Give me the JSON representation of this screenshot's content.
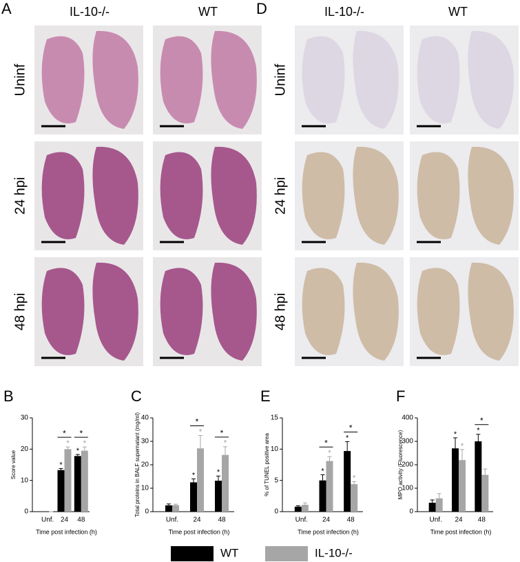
{
  "panels": [
    {
      "letter": "A",
      "columns": [
        "IL-10-/-",
        "WT"
      ],
      "rows": [
        "Uninf",
        "24 hpi",
        "48 hpi"
      ]
    },
    {
      "letter": "D",
      "columns": [
        "IL-10-/-",
        "WT"
      ],
      "rows": [
        "Uninf",
        "24 hpi",
        "48 hpi"
      ]
    }
  ],
  "chart_data": [
    {
      "type": "bar",
      "letter": "B",
      "y_label": "Score value",
      "x_label": "Time post infection (h)",
      "categories": [
        "Unf.",
        "24",
        "48"
      ],
      "ylim": [
        0,
        30
      ],
      "yticks": [
        0,
        10,
        20,
        30
      ],
      "series": [
        {
          "name": "WT",
          "color": "#000000",
          "values": [
            0,
            13.3,
            17.8
          ],
          "errors": [
            0,
            0.5,
            0.5
          ],
          "stars": [
            null,
            "*",
            "*"
          ]
        },
        {
          "name": "IL-10-/-",
          "color": "#a6a6a6",
          "values": [
            0,
            20,
            19.5
          ],
          "errors": [
            0,
            0.7,
            1.2
          ],
          "stars": [
            null,
            "*",
            "*"
          ]
        }
      ],
      "brackets": [
        null,
        "*",
        "*"
      ]
    },
    {
      "type": "bar",
      "letter": "C",
      "y_label": "Total proteins in BALF supernatant (mg/ml)",
      "x_label": "Time post infection (h)",
      "categories": [
        "Unf.",
        "24",
        "48"
      ],
      "ylim": [
        0,
        40
      ],
      "yticks": [
        0,
        10,
        20,
        30,
        40
      ],
      "series": [
        {
          "name": "WT",
          "color": "#000000",
          "values": [
            2.7,
            12.5,
            13.2
          ],
          "errors": [
            0.6,
            1.5,
            2
          ],
          "stars": [
            null,
            "*",
            "*"
          ]
        },
        {
          "name": "IL-10-/-",
          "color": "#a6a6a6",
          "values": [
            2.8,
            27,
            24.2
          ],
          "errors": [
            0.4,
            5.5,
            3.5
          ],
          "stars": [
            null,
            "*",
            "*"
          ]
        }
      ],
      "brackets": [
        null,
        "*",
        "*"
      ]
    },
    {
      "type": "bar",
      "letter": "E",
      "y_label": "% of TUNEL positive area",
      "x_label": "Time post infection (h)",
      "categories": [
        "Unf.",
        "24",
        "48"
      ],
      "ylim": [
        0,
        15
      ],
      "yticks": [
        0,
        5,
        10,
        15
      ],
      "series": [
        {
          "name": "WT",
          "color": "#000000",
          "values": [
            0.8,
            5.0,
            9.7
          ],
          "errors": [
            0.15,
            0.9,
            1.5
          ],
          "stars": [
            null,
            "*",
            "*"
          ]
        },
        {
          "name": "IL-10-/-",
          "color": "#a6a6a6",
          "values": [
            1.1,
            8.1,
            4.4
          ],
          "errors": [
            0.3,
            0.7,
            0.4
          ],
          "stars": [
            null,
            "*",
            "*"
          ]
        }
      ],
      "brackets": [
        null,
        "*",
        "*"
      ]
    },
    {
      "type": "bar",
      "letter": "F",
      "y_label": "MPO activity (Fluorescence)",
      "x_label": "Time post infection (h)",
      "categories": [
        "Unf.",
        "24",
        "48"
      ],
      "ylim": [
        0,
        400
      ],
      "yticks": [
        0,
        100,
        200,
        300,
        400
      ],
      "series": [
        {
          "name": "WT",
          "color": "#000000",
          "values": [
            38,
            270,
            300
          ],
          "errors": [
            12,
            45,
            30
          ],
          "stars": [
            null,
            "*",
            "*"
          ]
        },
        {
          "name": "IL-10-/-",
          "color": "#a6a6a6",
          "values": [
            57,
            220,
            157
          ],
          "errors": [
            20,
            45,
            25
          ],
          "stars": [
            null,
            "*",
            null
          ]
        }
      ],
      "brackets": [
        null,
        null,
        "*"
      ]
    }
  ]
}
